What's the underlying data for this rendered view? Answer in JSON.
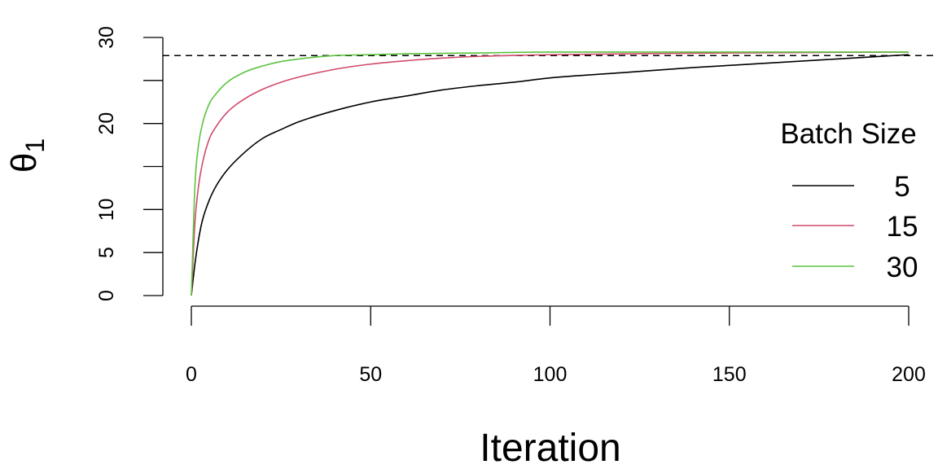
{
  "chart_data": {
    "type": "line",
    "xlabel": "Iteration",
    "ylabel": "θ",
    "ylabel_subscript": "1",
    "xlim": [
      0,
      200
    ],
    "ylim": [
      0,
      30
    ],
    "x_ticks": [
      0,
      50,
      100,
      150,
      200
    ],
    "y_ticks": [
      0,
      5,
      10,
      15,
      20,
      25,
      30
    ],
    "y_tick_labels": [
      {
        "value": 0,
        "label": "0"
      },
      {
        "value": 5,
        "label": "5"
      },
      {
        "value": 10,
        "label": "10"
      },
      {
        "value": 20,
        "label": "20"
      },
      {
        "value": 30,
        "label": "30"
      }
    ],
    "reference_line": {
      "y": 27.9,
      "style": "dashed"
    },
    "legend": {
      "title": "Batch Size",
      "position": "right"
    },
    "grid": false,
    "series": [
      {
        "name": "5",
        "color": "#000000",
        "x": [
          0,
          1,
          2,
          3,
          5,
          7,
          10,
          15,
          20,
          25,
          30,
          40,
          50,
          60,
          70,
          80,
          90,
          100,
          120,
          140,
          160,
          180,
          200
        ],
        "y": [
          0,
          3.7,
          6.5,
          8.6,
          11.1,
          12.8,
          14.6,
          16.7,
          18.3,
          19.3,
          20.2,
          21.5,
          22.5,
          23.2,
          23.9,
          24.4,
          24.8,
          25.3,
          25.9,
          26.5,
          27.0,
          27.5,
          28.0
        ]
      },
      {
        "name": "15",
        "color": "#D04A6A",
        "x": [
          0,
          1,
          2,
          3,
          5,
          7,
          10,
          15,
          20,
          25,
          30,
          40,
          50,
          60,
          70,
          80,
          100,
          150,
          200
        ],
        "y": [
          0,
          8.5,
          12.7,
          15.2,
          18.2,
          19.7,
          21.3,
          22.9,
          24.0,
          24.8,
          25.4,
          26.3,
          26.9,
          27.3,
          27.6,
          27.8,
          28.0,
          28.2,
          28.3
        ]
      },
      {
        "name": "30",
        "color": "#5CC33F",
        "x": [
          0,
          1,
          2,
          3,
          5,
          7,
          10,
          15,
          20,
          25,
          30,
          40,
          50,
          60,
          80,
          100,
          150,
          200
        ],
        "y": [
          0,
          12.8,
          17.5,
          19.8,
          22.3,
          23.5,
          24.8,
          26.0,
          26.7,
          27.2,
          27.5,
          27.9,
          28.0,
          28.1,
          28.2,
          28.3,
          28.3,
          28.3
        ]
      }
    ]
  }
}
